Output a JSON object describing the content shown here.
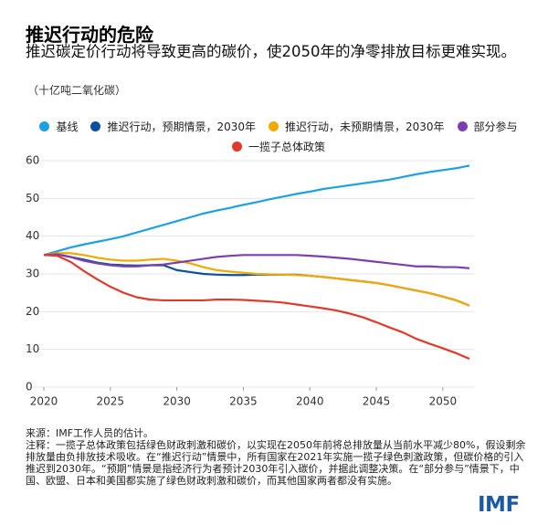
{
  "chart_data": {
    "type": "line",
    "title": "推迟行动的危险",
    "subtitle": "推迟碳定价行动将导致更高的碳价，使2050年的净零排放目标更难实现。",
    "y_label": "（十亿吨二氧化碳）",
    "x": [
      2020,
      2021,
      2022,
      2023,
      2024,
      2025,
      2026,
      2027,
      2028,
      2029,
      2030,
      2031,
      2032,
      2033,
      2034,
      2035,
      2036,
      2037,
      2038,
      2039,
      2040,
      2041,
      2042,
      2043,
      2044,
      2045,
      2046,
      2047,
      2048,
      2049,
      2050,
      2051,
      2052
    ],
    "xlim": [
      2020,
      2052
    ],
    "xticks": [
      2020,
      2025,
      2030,
      2035,
      2040,
      2045,
      2050
    ],
    "ylim": [
      0,
      60
    ],
    "yticks": [
      0,
      10,
      20,
      30,
      40,
      50,
      60
    ],
    "grid": true,
    "series": [
      {
        "name": "基线",
        "color": "#1da1e0",
        "values": [
          35,
          36,
          37,
          37.8,
          38.5,
          39.2,
          40,
          41,
          42,
          43,
          44,
          45,
          46,
          46.8,
          47.5,
          48.3,
          49,
          49.8,
          50.5,
          51.2,
          51.8,
          52.5,
          53,
          53.5,
          54,
          54.5,
          55,
          55.7,
          56.4,
          57,
          57.5,
          58,
          58.7
        ]
      },
      {
        "name": "推迟行动，预期情景，2030年",
        "color": "#0b4fa0",
        "values": [
          35,
          35.2,
          34.5,
          33.8,
          33,
          32.5,
          32.3,
          32.2,
          32.3,
          32.3,
          31,
          30.5,
          30,
          29.8,
          29.7,
          29.7,
          29.8,
          29.8,
          29.8,
          29.8,
          29.5,
          29.2,
          28.8,
          28.4,
          28,
          27.6,
          27,
          26.3,
          25.6,
          24.9,
          24,
          23,
          21.6
        ]
      },
      {
        "name": "推迟行动，未预期情景，2030年",
        "color": "#f2a900",
        "values": [
          35,
          35.5,
          35.5,
          35,
          34.3,
          33.8,
          33.5,
          33.5,
          33.8,
          34,
          33.5,
          32.8,
          31.8,
          31,
          30.6,
          30.3,
          30,
          29.9,
          29.8,
          29.7,
          29.5,
          29.2,
          28.8,
          28.4,
          28,
          27.6,
          27,
          26.3,
          25.6,
          24.9,
          24,
          23,
          21.6
        ]
      },
      {
        "name": "部分参与",
        "color": "#7b3fb0",
        "values": [
          35,
          35.2,
          34.5,
          33.5,
          32.8,
          32.3,
          32,
          32,
          32.3,
          32.5,
          33,
          33.5,
          34,
          34.5,
          34.8,
          35,
          35,
          35,
          35,
          35,
          34.8,
          34.6,
          34.3,
          34,
          33.6,
          33.2,
          32.8,
          32.4,
          32,
          32,
          31.8,
          31.8,
          31.5
        ]
      },
      {
        "name": "一揽子总体政策",
        "color": "#e03a2a",
        "values": [
          35,
          34.8,
          33.2,
          30.8,
          28.6,
          26.6,
          25,
          23.8,
          23.2,
          23,
          23,
          23,
          23,
          23.2,
          23.2,
          23.1,
          22.9,
          22.7,
          22.4,
          21.9,
          21.4,
          20.9,
          20.3,
          19.5,
          18.5,
          17.2,
          15.8,
          14.5,
          12.8,
          11.5,
          10.3,
          9,
          7.5
        ]
      }
    ],
    "source": "来源：IMF工作人员的估计。",
    "note": "注释：一揽子总体政策包括绿色财政刺激和碳价，以实现在2050年前将总排放量从当前水平减少80%，假设剩余排放量由负排放技术吸收。在“推迟行动”情景中，所有国家在2021年实施一揽子绿色刺激政策，但碳价格的引入推迟到2030年。“预期”情景是指经济行为者预计2030年引入碳价，并据此调整决策。在“部分参与”情景下，中国、欧盟、日本和美国都实施了绿色财政刺激和碳价，而其他国家两者都没有实施。",
    "logo": "IMF"
  }
}
